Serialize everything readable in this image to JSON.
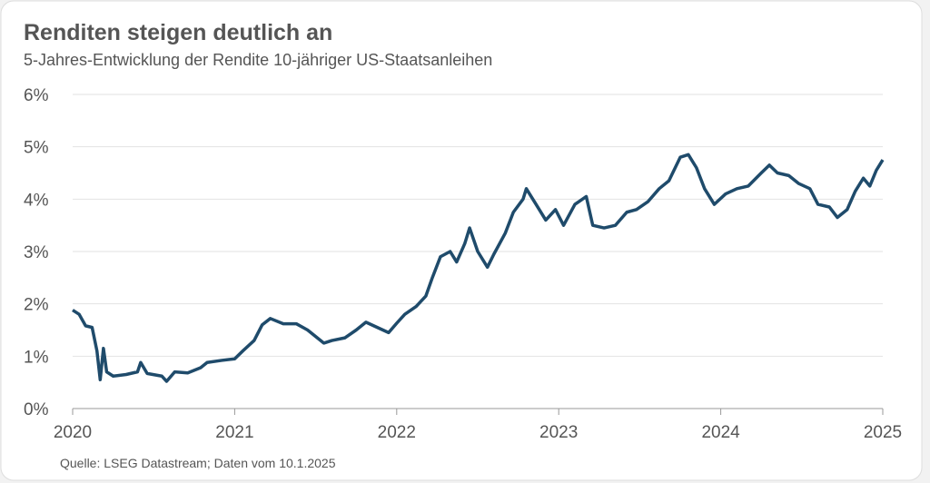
{
  "chart_data": {
    "type": "line",
    "title": "Renditen steigen deutlich an",
    "subtitle": "5-Jahres-Entwicklung der Rendite 10-jähriger US-Staatsanleihen",
    "source": "Quelle: LSEG Datastream; Daten vom 10.1.2025",
    "x": [
      2020.0,
      2020.04,
      2020.08,
      2020.12,
      2020.15,
      2020.17,
      2020.19,
      2020.21,
      2020.25,
      2020.33,
      2020.4,
      2020.42,
      2020.46,
      2020.55,
      2020.58,
      2020.63,
      2020.71,
      2020.79,
      2020.83,
      2020.92,
      2021.0,
      2021.05,
      2021.12,
      2021.17,
      2021.22,
      2021.3,
      2021.38,
      2021.45,
      2021.55,
      2021.6,
      2021.68,
      2021.75,
      2021.81,
      2021.88,
      2021.95,
      2022.0,
      2022.05,
      2022.12,
      2022.18,
      2022.22,
      2022.27,
      2022.33,
      2022.37,
      2022.42,
      2022.45,
      2022.5,
      2022.56,
      2022.6,
      2022.67,
      2022.72,
      2022.78,
      2022.8,
      2022.86,
      2022.92,
      2022.98,
      2023.03,
      2023.1,
      2023.17,
      2023.21,
      2023.28,
      2023.35,
      2023.42,
      2023.48,
      2023.55,
      2023.62,
      2023.68,
      2023.75,
      2023.8,
      2023.85,
      2023.9,
      2023.96,
      2024.03,
      2024.1,
      2024.17,
      2024.25,
      2024.3,
      2024.35,
      2024.42,
      2024.48,
      2024.55,
      2024.6,
      2024.67,
      2024.72,
      2024.78,
      2024.83,
      2024.88,
      2024.92,
      2024.96,
      2025.0
    ],
    "series": [
      {
        "color": "#1f4b6b",
        "values": [
          1.88,
          1.8,
          1.58,
          1.55,
          1.1,
          0.55,
          1.15,
          0.7,
          0.62,
          0.65,
          0.7,
          0.88,
          0.67,
          0.62,
          0.52,
          0.7,
          0.68,
          0.78,
          0.88,
          0.92,
          0.95,
          1.1,
          1.3,
          1.6,
          1.72,
          1.62,
          1.62,
          1.5,
          1.25,
          1.3,
          1.35,
          1.5,
          1.65,
          1.55,
          1.45,
          1.63,
          1.8,
          1.95,
          2.15,
          2.5,
          2.9,
          3.0,
          2.8,
          3.15,
          3.45,
          3.0,
          2.7,
          2.95,
          3.35,
          3.75,
          4.0,
          4.2,
          3.9,
          3.6,
          3.8,
          3.5,
          3.9,
          4.05,
          3.5,
          3.45,
          3.5,
          3.75,
          3.8,
          3.95,
          4.2,
          4.35,
          4.8,
          4.85,
          4.6,
          4.2,
          3.9,
          4.1,
          4.2,
          4.25,
          4.5,
          4.65,
          4.5,
          4.45,
          4.3,
          4.2,
          3.9,
          3.85,
          3.65,
          3.8,
          4.15,
          4.4,
          4.25,
          4.55,
          4.75
        ]
      }
    ],
    "xlim": [
      2020,
      2025
    ],
    "xticks": [
      2020,
      2021,
      2022,
      2023,
      2024,
      2025
    ],
    "ylim": [
      0,
      6
    ],
    "yticks": [
      {
        "value": 0,
        "label": "0%"
      },
      {
        "value": 1,
        "label": "1%"
      },
      {
        "value": 2,
        "label": "2%"
      },
      {
        "value": 3,
        "label": "3%"
      },
      {
        "value": 4,
        "label": "4%"
      },
      {
        "value": 5,
        "label": "5%"
      },
      {
        "value": 6,
        "label": "6%"
      }
    ],
    "grid": true
  }
}
